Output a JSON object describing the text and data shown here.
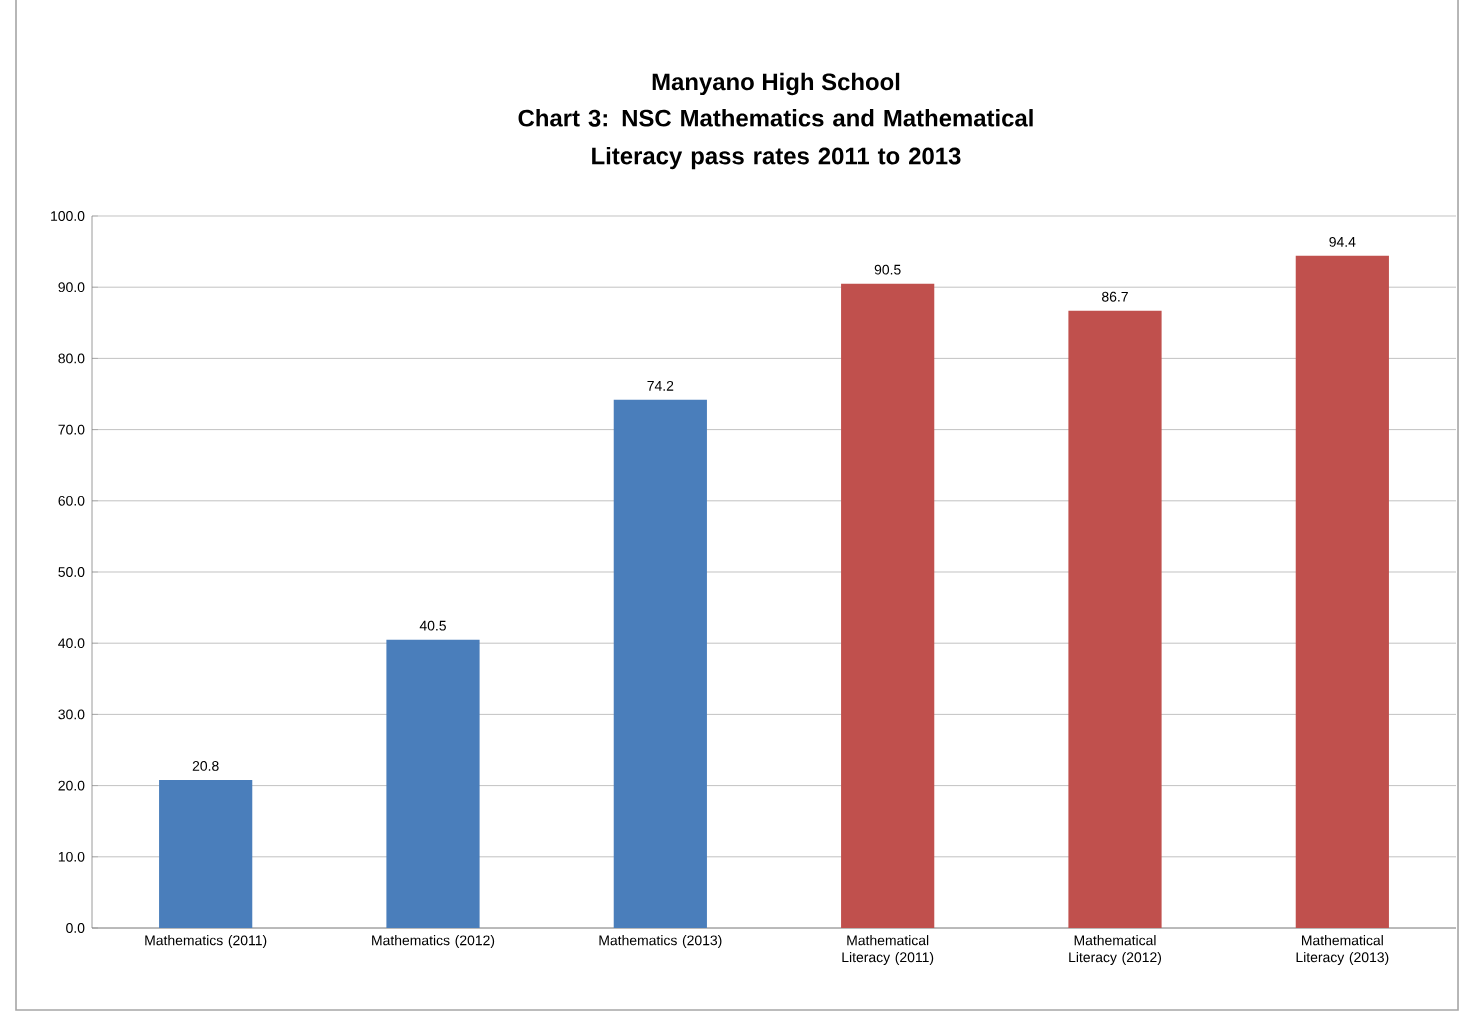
{
  "chart_data": {
    "type": "bar",
    "title": "Manyano High School",
    "subtitle": "Chart 3: NSC Mathematics and Mathematical Literacy pass rates 2011 to 2013",
    "categories": [
      "Mathematics (2011)",
      "Mathematics (2012)",
      "Mathematics (2013)",
      "Mathematical Literacy (2011)",
      "Mathematical Literacy (2012)",
      "Mathematical Literacy (2013)"
    ],
    "values": [
      20.8,
      40.5,
      74.2,
      90.5,
      86.7,
      94.4
    ],
    "colors": [
      "#4a7ebb",
      "#4a7ebb",
      "#4a7ebb",
      "#c0504d",
      "#c0504d",
      "#c0504d"
    ],
    "ylim": [
      0,
      100
    ],
    "yticks": [
      {
        "value": 0,
        "label": "0.0"
      },
      {
        "value": 10,
        "label": "10.0"
      },
      {
        "value": 20,
        "label": "20.0"
      },
      {
        "value": 30,
        "label": "30.0"
      },
      {
        "value": 40,
        "label": "40.0"
      },
      {
        "value": 50,
        "label": "50.0"
      },
      {
        "value": 60,
        "label": "60.0"
      },
      {
        "value": 70,
        "label": "70.0"
      },
      {
        "value": 80,
        "label": "80.0"
      },
      {
        "value": 90,
        "label": "90.0"
      },
      {
        "value": 100,
        "label": "100.0"
      }
    ],
    "grid": "y",
    "data_labels": true
  }
}
